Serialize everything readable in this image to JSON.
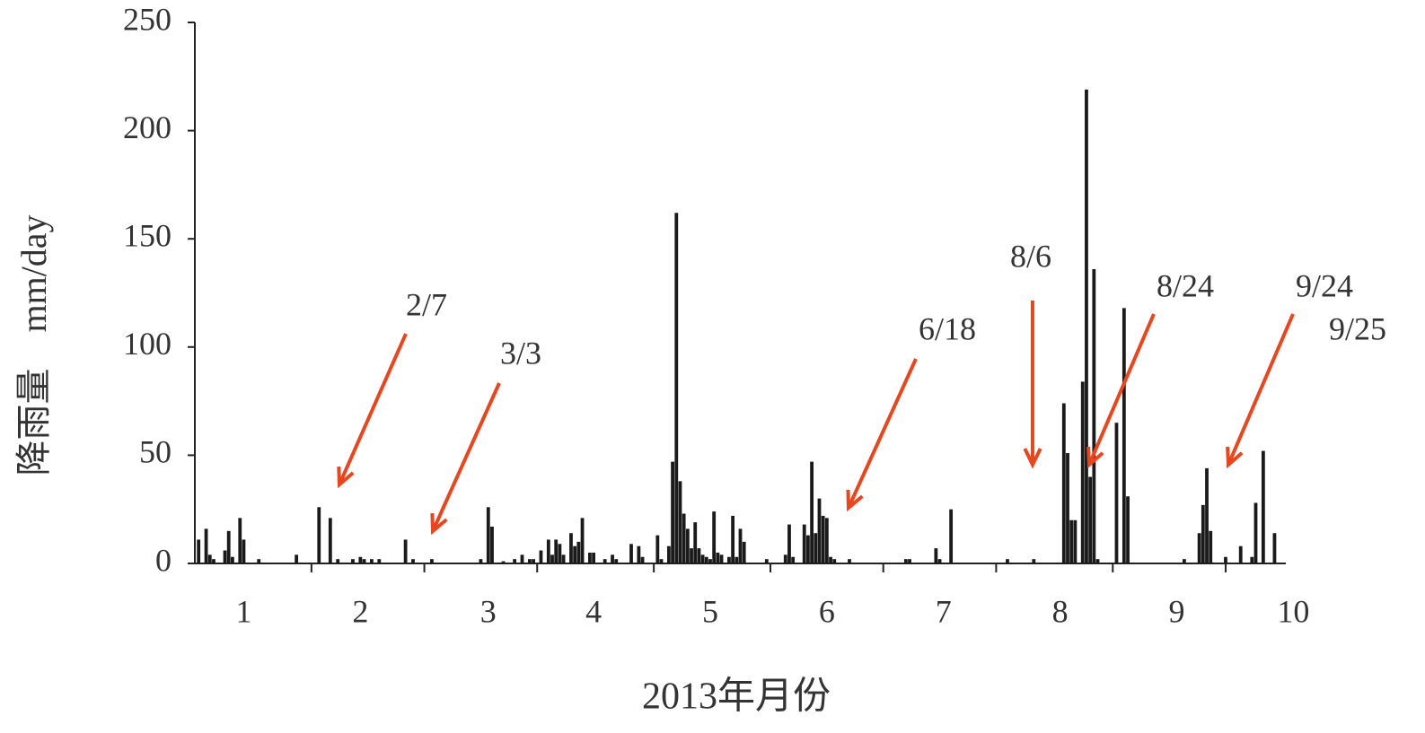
{
  "chart_data": {
    "type": "bar",
    "xlabel": "2013年月份",
    "ylabel": "降雨量　mm/day",
    "color": "#1a1a1a",
    "x": [
      1,
      3,
      4,
      5,
      8,
      9,
      10,
      12,
      13,
      17,
      27,
      33,
      36,
      38,
      42,
      44,
      45,
      47,
      49,
      56,
      58,
      63,
      76,
      78,
      79,
      82,
      85,
      87,
      89,
      90,
      92,
      94,
      95,
      96,
      97,
      98,
      100,
      101,
      102,
      103,
      105,
      106,
      109,
      111,
      112,
      116,
      118,
      119,
      123,
      124,
      126,
      127,
      128,
      129,
      130,
      131,
      132,
      133,
      134,
      135,
      136,
      137,
      138,
      139,
      140,
      142,
      143,
      144,
      145,
      146,
      152,
      157,
      158,
      159,
      162,
      163,
      164,
      165,
      166,
      167,
      168,
      169,
      170,
      174,
      189,
      190,
      197,
      198,
      201,
      216,
      223,
      231,
      232,
      233,
      234,
      236,
      237,
      238,
      239,
      240,
      245,
      247,
      248,
      263,
      267,
      268,
      269,
      270,
      274,
      278,
      281,
      282,
      284,
      287
    ],
    "values": [
      11,
      16,
      4,
      2,
      6,
      15,
      3,
      21,
      11,
      2,
      4,
      26,
      21,
      2,
      2,
      3,
      2,
      2,
      2,
      11,
      2,
      2,
      2,
      26,
      17,
      1,
      2,
      4,
      2,
      2,
      6,
      11,
      4,
      11,
      9,
      4,
      14,
      8,
      10,
      21,
      5,
      5,
      2,
      4,
      2,
      9,
      8,
      3,
      13,
      2,
      8,
      47,
      162,
      38,
      23,
      16,
      7,
      19,
      7,
      4,
      3,
      2,
      24,
      5,
      4,
      3,
      22,
      3,
      16,
      10,
      2,
      4,
      18,
      3,
      18,
      13,
      47,
      14,
      30,
      22,
      21,
      3,
      2,
      2,
      2,
      2,
      7,
      2,
      25,
      2,
      2,
      74,
      51,
      20,
      20,
      84,
      219,
      40,
      136,
      2,
      65,
      118,
      31,
      2,
      14,
      27,
      44,
      15,
      3,
      8,
      3,
      28,
      52,
      14
    ],
    "xlim": [
      0,
      290
    ],
    "ylim": [
      0,
      250
    ],
    "yticks": [
      0,
      50,
      100,
      150,
      200,
      250
    ],
    "xticks": [
      {
        "value": 13,
        "label": "1"
      },
      {
        "value": 44,
        "label": "2"
      },
      {
        "value": 78,
        "label": "3"
      },
      {
        "value": 106,
        "label": "4"
      },
      {
        "value": 137,
        "label": "5"
      },
      {
        "value": 168,
        "label": "6"
      },
      {
        "value": 199,
        "label": "7"
      },
      {
        "value": 230,
        "label": "8"
      },
      {
        "value": 261,
        "label": "9"
      },
      {
        "value": 292,
        "label": "10"
      }
    ],
    "xminor": [
      31,
      61,
      91,
      122,
      153,
      183,
      213,
      244,
      274
    ],
    "annotations": [
      "2/7",
      "3/3",
      "6/18",
      "8/6",
      "8/24",
      "9/24",
      "9/25"
    ],
    "annotation_color": "#e8461e"
  }
}
